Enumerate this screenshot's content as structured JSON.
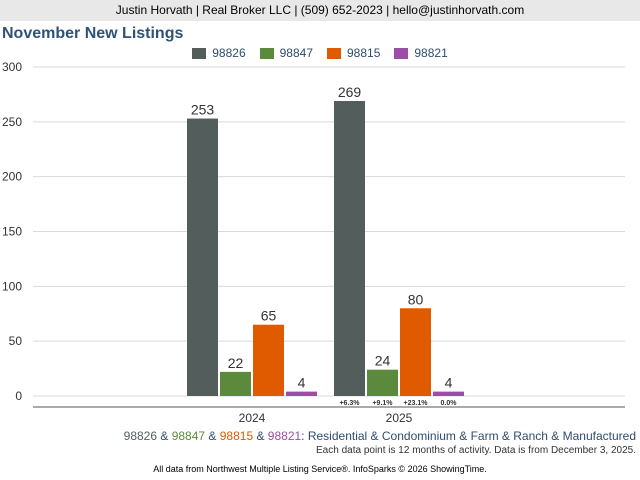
{
  "header": {
    "contact": "Justin Horvath | Real Broker LLC | (509) 652-2023 | hello@justinhorvath.com"
  },
  "chart_data": {
    "type": "bar",
    "title": "November New Listings",
    "categories": [
      "2024",
      "2025"
    ],
    "series": [
      {
        "name": "98826",
        "color": "#535e5c",
        "values": [
          253,
          269
        ],
        "changes": [
          "",
          "+6.3%"
        ]
      },
      {
        "name": "98847",
        "color": "#5c8a3c",
        "values": [
          22,
          24
        ],
        "changes": [
          "",
          "+9.1%"
        ]
      },
      {
        "name": "98815",
        "color": "#e05a00",
        "values": [
          65,
          80
        ],
        "changes": [
          "",
          "+23.1%"
        ]
      },
      {
        "name": "98821",
        "color": "#9b4ea3",
        "values": [
          4,
          4
        ],
        "changes": [
          "",
          "0.0%"
        ]
      }
    ],
    "ylim": [
      0,
      300
    ],
    "yticks": [
      0,
      50,
      100,
      150,
      200,
      250,
      300
    ],
    "grid": true,
    "legend": "top-center"
  },
  "caption": {
    "parts": [
      {
        "text": "98826",
        "color": "#535e5c"
      },
      {
        "text": " & ",
        "color": "#2e4c6d"
      },
      {
        "text": "98847",
        "color": "#5c8a3c"
      },
      {
        "text": " & ",
        "color": "#2e4c6d"
      },
      {
        "text": "98815",
        "color": "#e05a00"
      },
      {
        "text": " & ",
        "color": "#2e4c6d"
      },
      {
        "text": "98821",
        "color": "#9b4ea3"
      },
      {
        "text": ": Residential & Condominium & Farm & Ranch & Manufactured",
        "color": "#2e4c6d"
      }
    ]
  },
  "note": "Each data point is 12 months of activity. Data is from December 3, 2025.",
  "footer": "All data from Northwest Multiple Listing Service®. InfoSparks © 2026 ShowingTime."
}
